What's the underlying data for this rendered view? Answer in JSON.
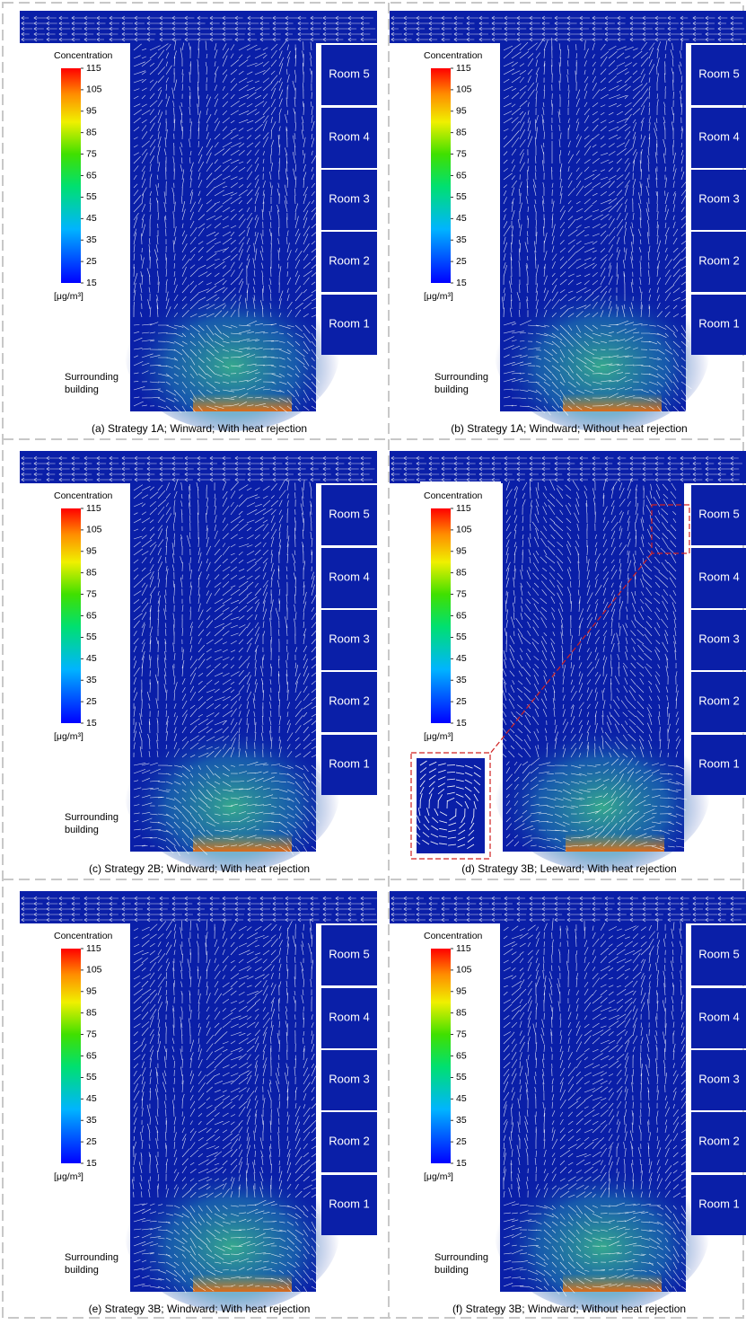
{
  "panels": [
    {
      "caption": "(a) Strategy 1A; Winward; With heat rejection",
      "legend_title": "Concentration",
      "ticks": [
        115,
        105,
        95,
        85,
        75,
        65,
        55,
        45,
        35,
        25,
        15
      ],
      "unit": "[μg/m³]",
      "rooms": [
        "Room 5",
        "Room 4",
        "Room 3",
        "Room 2",
        "Room 1"
      ],
      "surrounding": [
        "Surrounding",
        "building"
      ]
    },
    {
      "caption": "(b) Strategy 1A; Windward; Without heat rejection",
      "legend_title": "Concentration",
      "ticks": [
        115,
        105,
        95,
        85,
        75,
        65,
        55,
        45,
        35,
        25,
        15
      ],
      "unit": "[μg/m³]",
      "rooms": [
        "Room 5",
        "Room 4",
        "Room 3",
        "Room 2",
        "Room 1"
      ],
      "surrounding": [
        "Surrounding",
        "building"
      ]
    },
    {
      "caption": "(c) Strategy 2B; Windward; With heat rejection",
      "legend_title": "Concentration",
      "ticks": [
        115,
        105,
        95,
        85,
        75,
        65,
        55,
        45,
        35,
        25,
        15
      ],
      "unit": "[μg/m³]",
      "rooms": [
        "Room 5",
        "Room 4",
        "Room 3",
        "Room 2",
        "Room 1"
      ],
      "surrounding": [
        "Surrounding",
        "building"
      ]
    },
    {
      "caption": "(d) Strategy 3B; Leeward; With heat rejection",
      "legend_title": "Concentration",
      "ticks": [
        115,
        105,
        95,
        85,
        75,
        65,
        55,
        45,
        35,
        25,
        15
      ],
      "unit": "[μg/m³]",
      "rooms": [
        "Room 5",
        "Room 4",
        "Room 3",
        "Room 2",
        "Room 1"
      ]
    },
    {
      "caption": "(e) Strategy 3B; Windward; With heat rejection",
      "legend_title": "Concentration",
      "ticks": [
        115,
        105,
        95,
        85,
        75,
        65,
        55,
        45,
        35,
        25,
        15
      ],
      "unit": "[μg/m³]",
      "rooms": [
        "Room 5",
        "Room 4",
        "Room 3",
        "Room 2",
        "Room 1"
      ],
      "surrounding": [
        "Surrounding",
        "building"
      ]
    },
    {
      "caption": "(f) Strategy 3B; Windward; Without heat rejection",
      "legend_title": "Concentration",
      "ticks": [
        115,
        105,
        95,
        85,
        75,
        65,
        55,
        45,
        35,
        25,
        15
      ],
      "unit": "[μg/m³]",
      "rooms": [
        "Room 5",
        "Room 4",
        "Room 3",
        "Room 2",
        "Room 1"
      ],
      "surrounding": [
        "Surrounding",
        "building"
      ]
    }
  ]
}
